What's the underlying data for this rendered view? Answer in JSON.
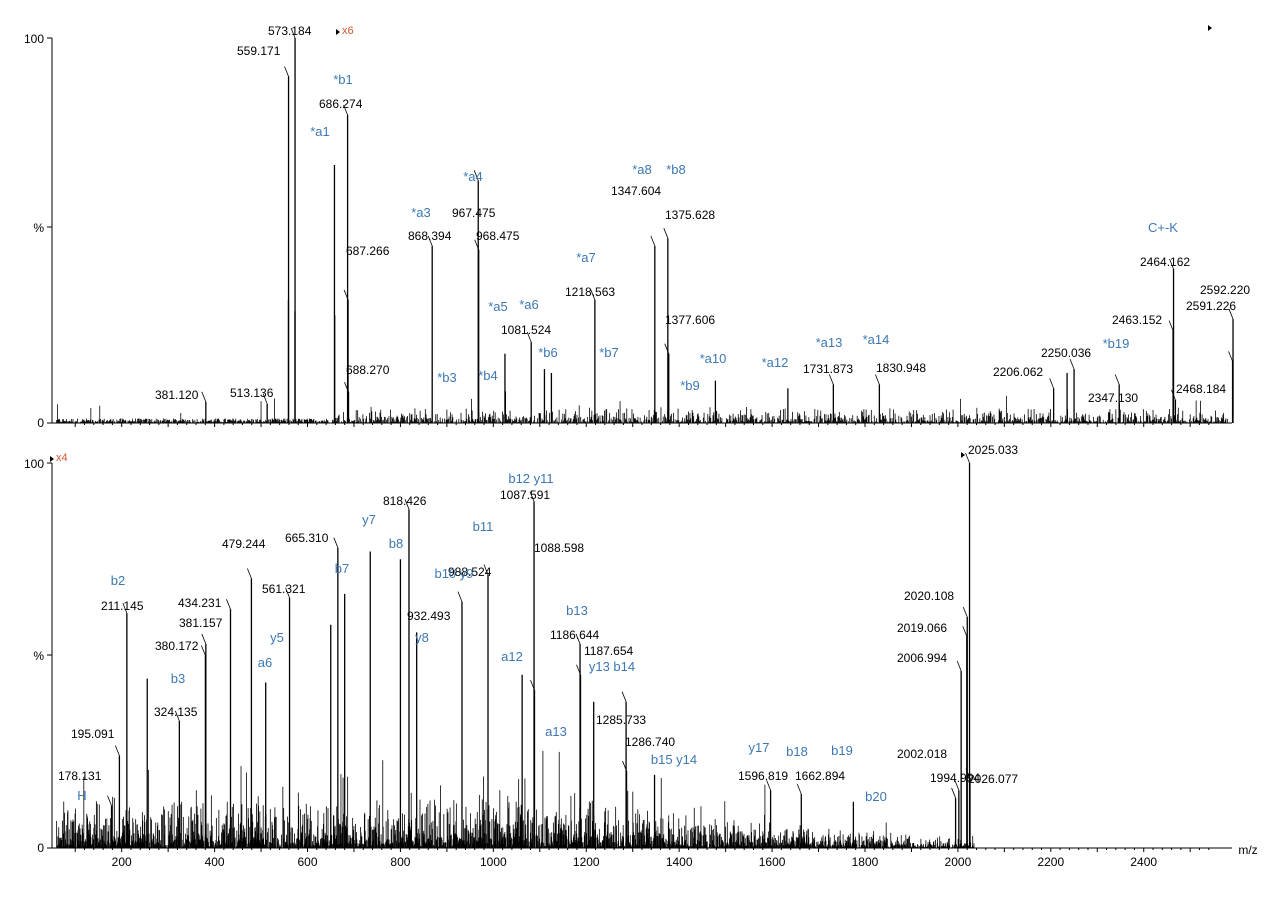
{
  "chart_data": [
    {
      "type": "mass-spectrum",
      "panel": "top",
      "xlim": [
        50,
        2590
      ],
      "ylim": [
        0,
        100
      ],
      "ytick_labels": [
        "0",
        "%",
        "100"
      ],
      "magnification": "x6",
      "peaks": [
        {
          "mz": 381.12,
          "y": 5.5,
          "label": "381.120"
        },
        {
          "mz": 513.136,
          "y": 5.0,
          "label": "513.136"
        },
        {
          "mz": 559.171,
          "y": 90.0,
          "label": "559.171"
        },
        {
          "mz": 573.184,
          "y": 100.0,
          "label": "573.184"
        },
        {
          "mz": 559.0,
          "y": 32.0
        },
        {
          "mz": 573.0,
          "y": 29.0
        },
        {
          "mz": 658.0,
          "y": 67.0
        },
        {
          "mz": 658.5,
          "y": 28.0
        },
        {
          "mz": 686.274,
          "y": 80.0,
          "label": "686.274"
        },
        {
          "mz": 687.266,
          "y": 32.0,
          "label": "687.266"
        },
        {
          "mz": 688.27,
          "y": 8.0,
          "label": "688.270"
        },
        {
          "mz": 868.394,
          "y": 46.0,
          "label": "868.394"
        },
        {
          "mz": 967.475,
          "y": 63.0,
          "label": "967.475"
        },
        {
          "mz": 968.475,
          "y": 45.0,
          "label": "968.475"
        },
        {
          "mz": 1025.0,
          "y": 18.0
        },
        {
          "mz": 1081.524,
          "y": 21.0,
          "label": "1081.524"
        },
        {
          "mz": 1110.0,
          "y": 14.0
        },
        {
          "mz": 1125.0,
          "y": 13.0
        },
        {
          "mz": 1218.563,
          "y": 32.0,
          "label": "1218.563"
        },
        {
          "mz": 1347.604,
          "y": 46.0,
          "label": "1347.604"
        },
        {
          "mz": 1375.628,
          "y": 48.0,
          "label": "1375.628"
        },
        {
          "mz": 1377.606,
          "y": 18.0,
          "label": "1377.606"
        },
        {
          "mz": 1478.0,
          "y": 11.0
        },
        {
          "mz": 1634.0,
          "y": 9.0
        },
        {
          "mz": 1731.873,
          "y": 10.0,
          "label": "1731.873"
        },
        {
          "mz": 1830.948,
          "y": 10.0,
          "label": "1830.948"
        },
        {
          "mz": 2206.062,
          "y": 9.0,
          "label": "2206.062"
        },
        {
          "mz": 2235.0,
          "y": 13.0
        },
        {
          "mz": 2250.036,
          "y": 14.0,
          "label": "2250.036"
        },
        {
          "mz": 2347.13,
          "y": 10.0,
          "label": "2347.130"
        },
        {
          "mz": 2463.152,
          "y": 24.0,
          "label": "2463.152"
        },
        {
          "mz": 2464.162,
          "y": 40.0,
          "label": "2464.162"
        },
        {
          "mz": 2468.184,
          "y": 6.0,
          "label": "2468.184"
        },
        {
          "mz": 2591.226,
          "y": 16.0,
          "label": "2591.226"
        },
        {
          "mz": 2592.22,
          "y": 27.0,
          "label": "2592.220"
        }
      ],
      "annotations": [
        "*b1",
        "*a1",
        "*a4",
        "*a3",
        "*a5",
        "*a6",
        "*b6",
        "*b3",
        "*b4",
        "*a7",
        "*b7",
        "*a8",
        "*b8",
        "*b9",
        "*a10",
        "*a12",
        "*a13",
        "*a14",
        "*b19",
        "C+-K"
      ]
    },
    {
      "type": "mass-spectrum",
      "panel": "bottom",
      "xlim": [
        50,
        2590
      ],
      "ylim": [
        0,
        100
      ],
      "ytick_labels": [
        "0",
        "%",
        "100"
      ],
      "xlabel": "m/z",
      "xticks": [
        200,
        400,
        600,
        800,
        1000,
        1200,
        1400,
        1600,
        1800,
        2000,
        2200,
        2400
      ],
      "magnification": "x4",
      "peaks": [
        {
          "mz": 178.131,
          "y": 11.0,
          "label": "178.131"
        },
        {
          "mz": 195.091,
          "y": 24.0,
          "label": "195.091"
        },
        {
          "mz": 211.145,
          "y": 61.0,
          "label": "211.145"
        },
        {
          "mz": 255.0,
          "y": 44.0
        },
        {
          "mz": 324.135,
          "y": 33.0,
          "label": "324.135"
        },
        {
          "mz": 380.172,
          "y": 50.0,
          "label": "380.172"
        },
        {
          "mz": 381.157,
          "y": 53.0,
          "label": "381.157"
        },
        {
          "mz": 434.231,
          "y": 62.0,
          "label": "434.231"
        },
        {
          "mz": 479.244,
          "y": 70.0,
          "label": "479.244"
        },
        {
          "mz": 510.0,
          "y": 43.0
        },
        {
          "mz": 561.321,
          "y": 65.0,
          "label": "561.321"
        },
        {
          "mz": 650.0,
          "y": 58.0
        },
        {
          "mz": 665.31,
          "y": 78.0,
          "label": "665.310"
        },
        {
          "mz": 680.0,
          "y": 66.0
        },
        {
          "mz": 735.0,
          "y": 77.0
        },
        {
          "mz": 800.0,
          "y": 75.0
        },
        {
          "mz": 818.426,
          "y": 88.0,
          "label": "818.426"
        },
        {
          "mz": 835.0,
          "y": 56.0
        },
        {
          "mz": 932.493,
          "y": 64.0,
          "label": "932.493"
        },
        {
          "mz": 988.524,
          "y": 71.0,
          "label": "988.524"
        },
        {
          "mz": 1062.0,
          "y": 45.0
        },
        {
          "mz": 1087.591,
          "y": 90.0,
          "label": "1087.591"
        },
        {
          "mz": 1088.598,
          "y": 41.0,
          "label": "1088.598"
        },
        {
          "mz": 1186.644,
          "y": 53.0,
          "label": "1186.644"
        },
        {
          "mz": 1187.654,
          "y": 45.0,
          "label": "1187.654"
        },
        {
          "mz": 1216.0,
          "y": 38.0
        },
        {
          "mz": 1285.733,
          "y": 38.0,
          "label": "1285.733"
        },
        {
          "mz": 1286.74,
          "y": 20.0,
          "label": "1286.740"
        },
        {
          "mz": 1347.0,
          "y": 19.0
        },
        {
          "mz": 1596.819,
          "y": 15.0,
          "label": "1596.819"
        },
        {
          "mz": 1662.894,
          "y": 14.0,
          "label": "1662.894"
        },
        {
          "mz": 1775.0,
          "y": 12.0
        },
        {
          "mz": 1994.994,
          "y": 13.0,
          "label": "1994.994"
        },
        {
          "mz": 2002.018,
          "y": 15.0,
          "label": "2002.018"
        },
        {
          "mz": 2006.994,
          "y": 46.0,
          "label": "2006.994"
        },
        {
          "mz": 2019.066,
          "y": 55.0,
          "label": "2019.066"
        },
        {
          "mz": 2020.108,
          "y": 60.0,
          "label": "2020.108"
        },
        {
          "mz": 2025.033,
          "y": 100.0,
          "label": "2025.033"
        },
        {
          "mz": 2026.077,
          "y": 18.0,
          "label": "2026.077"
        }
      ],
      "annotations": [
        "H",
        "b2",
        "b3",
        "y5",
        "a6",
        "b7",
        "y7",
        "b8",
        "y8",
        "b10 y9",
        "b11",
        "b12 y11",
        "b13",
        "a12",
        "y13 b14",
        "a13",
        "b15 y14",
        "y17",
        "b18",
        "b19",
        "b20"
      ]
    }
  ]
}
